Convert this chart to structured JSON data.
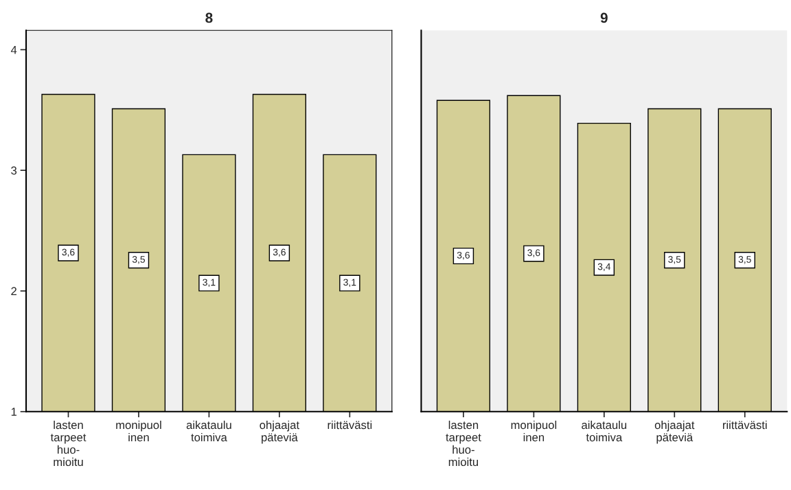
{
  "chart_data": [
    {
      "type": "bar",
      "title": "8",
      "categories": [
        "lasten\ntarpeet\nhuo-\nmioitu",
        "monipuol\ninen",
        "aikataulu\ntoimiva",
        "ohjaajat\npäteviä",
        "riittävästi"
      ],
      "values": [
        3.63,
        3.51,
        3.13,
        3.63,
        3.13
      ],
      "value_labels": [
        "3,6",
        "3,5",
        "3,1",
        "3,6",
        "3,1"
      ],
      "color": "#d4cf96",
      "ylim": [
        1,
        4.16
      ],
      "yticks": [
        1,
        2,
        3,
        4
      ],
      "grid": false,
      "legend": false
    },
    {
      "type": "bar",
      "title": "9",
      "categories": [
        "lasten\ntarpeet\nhuo-\nmioitu",
        "monipuol\ninen",
        "aikataulu\ntoimiva",
        "ohjaajat\npäteviä",
        "riittävästi"
      ],
      "values": [
        3.58,
        3.62,
        3.39,
        3.51,
        3.51
      ],
      "value_labels": [
        "3,6",
        "3,6",
        "3,4",
        "3,5",
        "3,5"
      ],
      "color": "#d4cf96",
      "ylim": [
        1,
        4.16
      ],
      "yticks": [
        1,
        2,
        3,
        4
      ],
      "grid": false,
      "legend": false,
      "tick_labels": "x"
    }
  ]
}
